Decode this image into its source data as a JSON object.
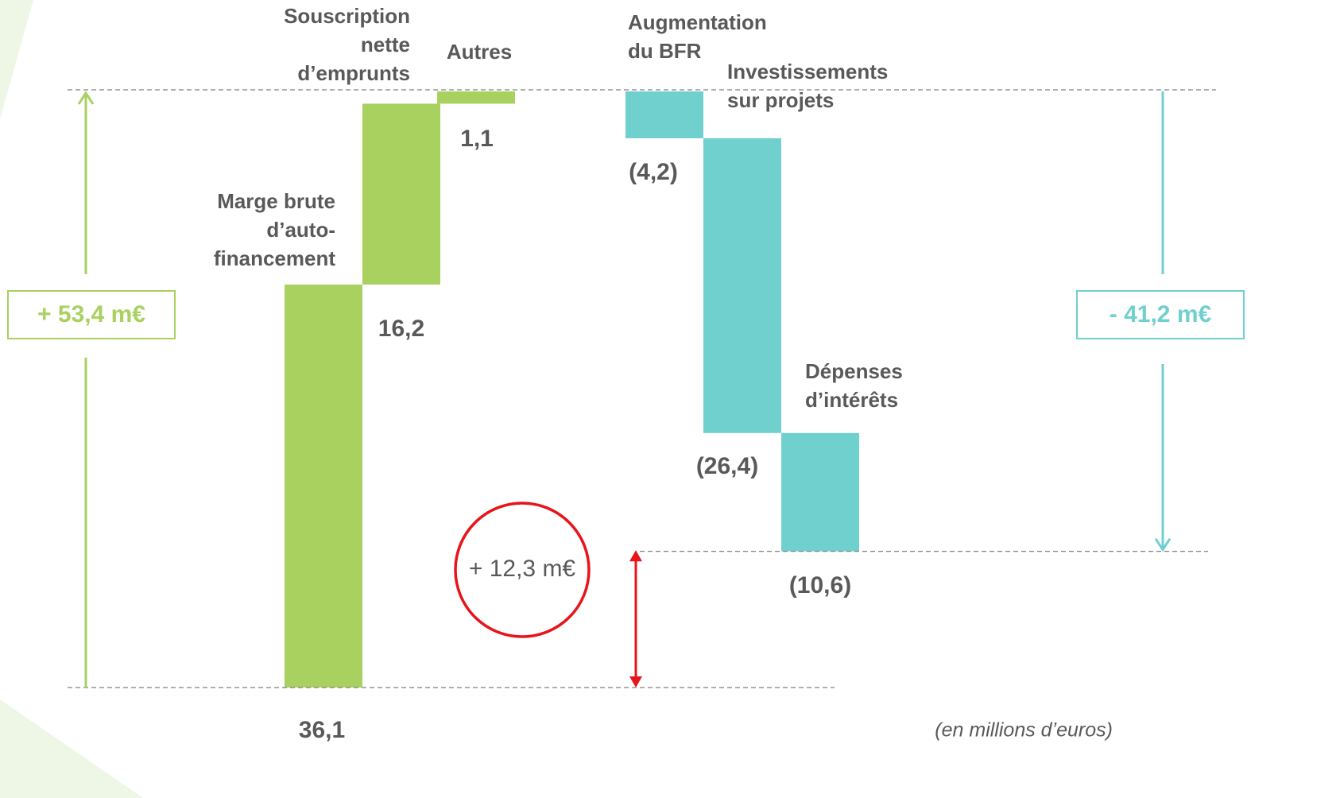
{
  "chart_data": {
    "type": "waterfall",
    "categories": [
      [
        "Marge brute",
        "d’auto-",
        "financement"
      ],
      [
        "Souscription",
        "nette",
        "d’emprunts"
      ],
      [
        "Autres"
      ],
      [
        "Augmentation",
        "du BFR"
      ],
      [
        "Investissements",
        "sur projets"
      ],
      [
        "Dépenses",
        "d’intérêts"
      ]
    ],
    "values": [
      36.1,
      16.2,
      1.1,
      -4.2,
      -26.4,
      -10.6
    ],
    "value_labels": [
      "36,1",
      "16,2",
      "1,1",
      "(4,2)",
      "(26,4)",
      "(10,6)"
    ],
    "colors": [
      "#a9d15f",
      "#a9d15f",
      "#a9d15f",
      "#6fd0ce",
      "#6fd0ce",
      "#6fd0ce"
    ],
    "ylim": [
      0,
      53.4
    ],
    "totals": [
      {
        "value": 53.4,
        "label": "+ 53,4 m€",
        "color": "#a9d15f"
      },
      {
        "value": -41.2,
        "label": "- 41,2 m€",
        "color": "#6fd0ce"
      },
      {
        "value": 12.3,
        "label": "+ 12,3 m€",
        "color": "#e8141b"
      }
    ],
    "note": "(en millions d’euros)"
  }
}
